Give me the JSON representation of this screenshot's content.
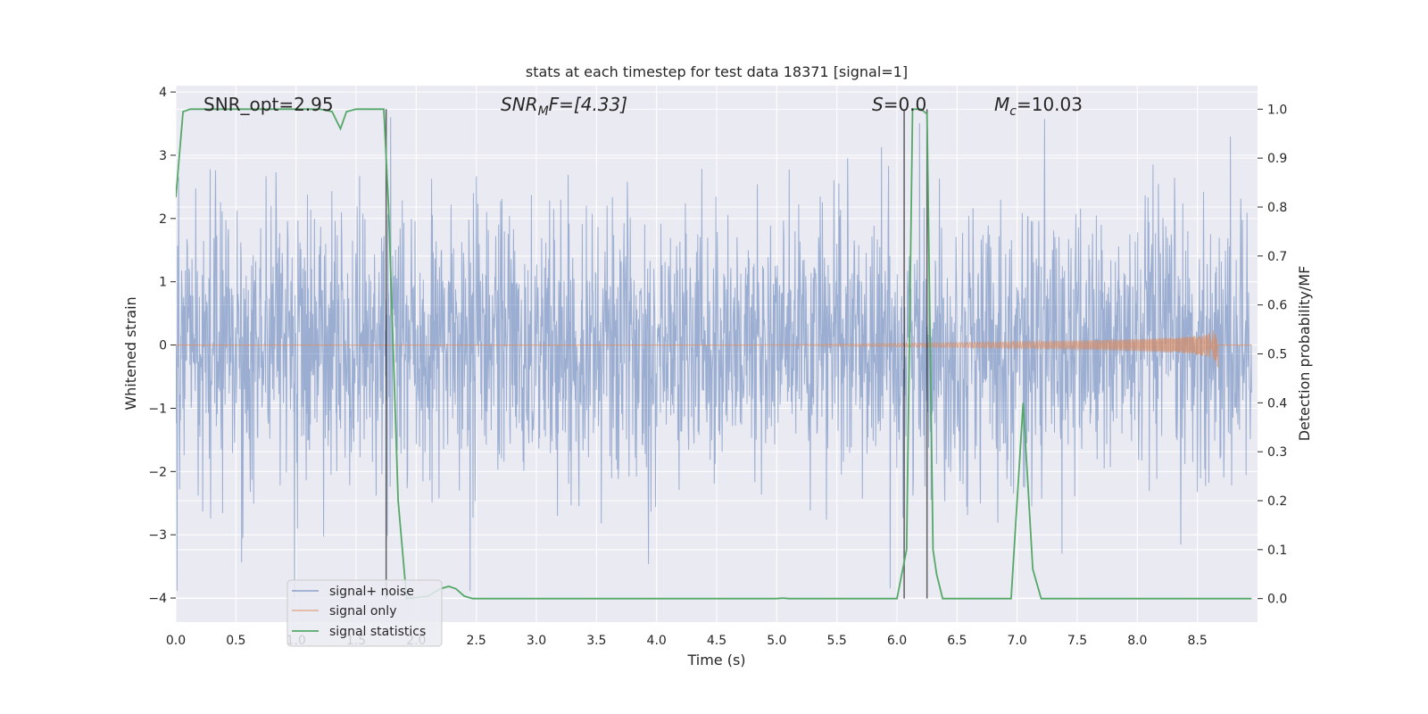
{
  "chart_data": {
    "type": "line",
    "title": "stats at each timestep for test data 18371 [signal=1]",
    "xlabel": "Time (s)",
    "ylabel": "Whitened strain",
    "ylabel_right": "Detection probability/MF",
    "xlim": [
      0.0,
      9.0
    ],
    "ylim_left": [
      -4.38,
      4.1
    ],
    "ylim_right": [
      -0.048,
      1.048
    ],
    "x_ticks": [
      "0.0",
      "0.5",
      "1.0",
      "1.5",
      "2.0",
      "2.5",
      "3.0",
      "3.5",
      "4.0",
      "4.5",
      "5.0",
      "5.5",
      "6.0",
      "6.5",
      "7.0",
      "7.5",
      "8.0",
      "8.5"
    ],
    "y_ticks_left": [
      "4",
      "3",
      "2",
      "1",
      "0",
      "−1",
      "−2",
      "−3",
      "−4"
    ],
    "y_ticks_right": [
      "1.0",
      "0.9",
      "0.8",
      "0.7",
      "0.6",
      "0.5",
      "0.4",
      "0.3",
      "0.2",
      "0.1",
      "0.0"
    ],
    "annotations": {
      "snr_opt": "SNR_opt=2.95",
      "snr_mf_main": "SNR",
      "snr_mf_sub": "M",
      "snr_mf_rest": "F=[4.33]",
      "s_var": "S",
      "s_rest": "=0.0",
      "mc_var": "M",
      "mc_sub": "c",
      "mc_rest": "=10.03"
    },
    "vertical_markers_x": [
      1.75,
      6.06,
      6.25
    ],
    "legend": {
      "position": "lower-left",
      "entries": [
        "signal+ noise",
        "signal only",
        "signal statistics"
      ]
    },
    "series": [
      {
        "name": "signal+ noise",
        "color": "#4c72b0",
        "axis": "left",
        "description": "whitened noisy strain, roughly Gaussian noise with peaks between -4 and 3.6",
        "approx_range": [
          -4.0,
          3.6
        ]
      },
      {
        "name": "signal only",
        "color": "#dd8452",
        "axis": "left",
        "chirp": {
          "start_x": 4.8,
          "end_x": 8.67,
          "peak_amplitude": 0.4
        }
      },
      {
        "name": "signal statistics",
        "color": "#55a868",
        "axis": "right",
        "x": [
          0.0,
          0.06,
          0.12,
          1.2,
          1.3,
          1.37,
          1.42,
          1.5,
          1.65,
          1.73,
          1.77,
          1.85,
          1.92,
          2.1,
          2.2,
          2.27,
          2.33,
          2.4,
          2.47,
          2.55,
          5.0,
          5.05,
          5.1,
          6.0,
          6.08,
          6.13,
          6.2,
          6.25,
          6.3,
          6.33,
          6.38,
          6.95,
          7.05,
          7.13,
          7.2,
          8.95
        ],
        "y": [
          0.82,
          0.995,
          1.0,
          1.0,
          0.995,
          0.96,
          0.995,
          1.0,
          1.0,
          1.0,
          0.8,
          0.2,
          0.0,
          0.005,
          0.02,
          0.025,
          0.02,
          0.005,
          0.0,
          0.0,
          0.0,
          0.001,
          0.0,
          0.0,
          0.1,
          1.0,
          1.0,
          0.99,
          0.1,
          0.05,
          0.0,
          0.0,
          0.4,
          0.06,
          0.0,
          0.0
        ]
      }
    ]
  }
}
